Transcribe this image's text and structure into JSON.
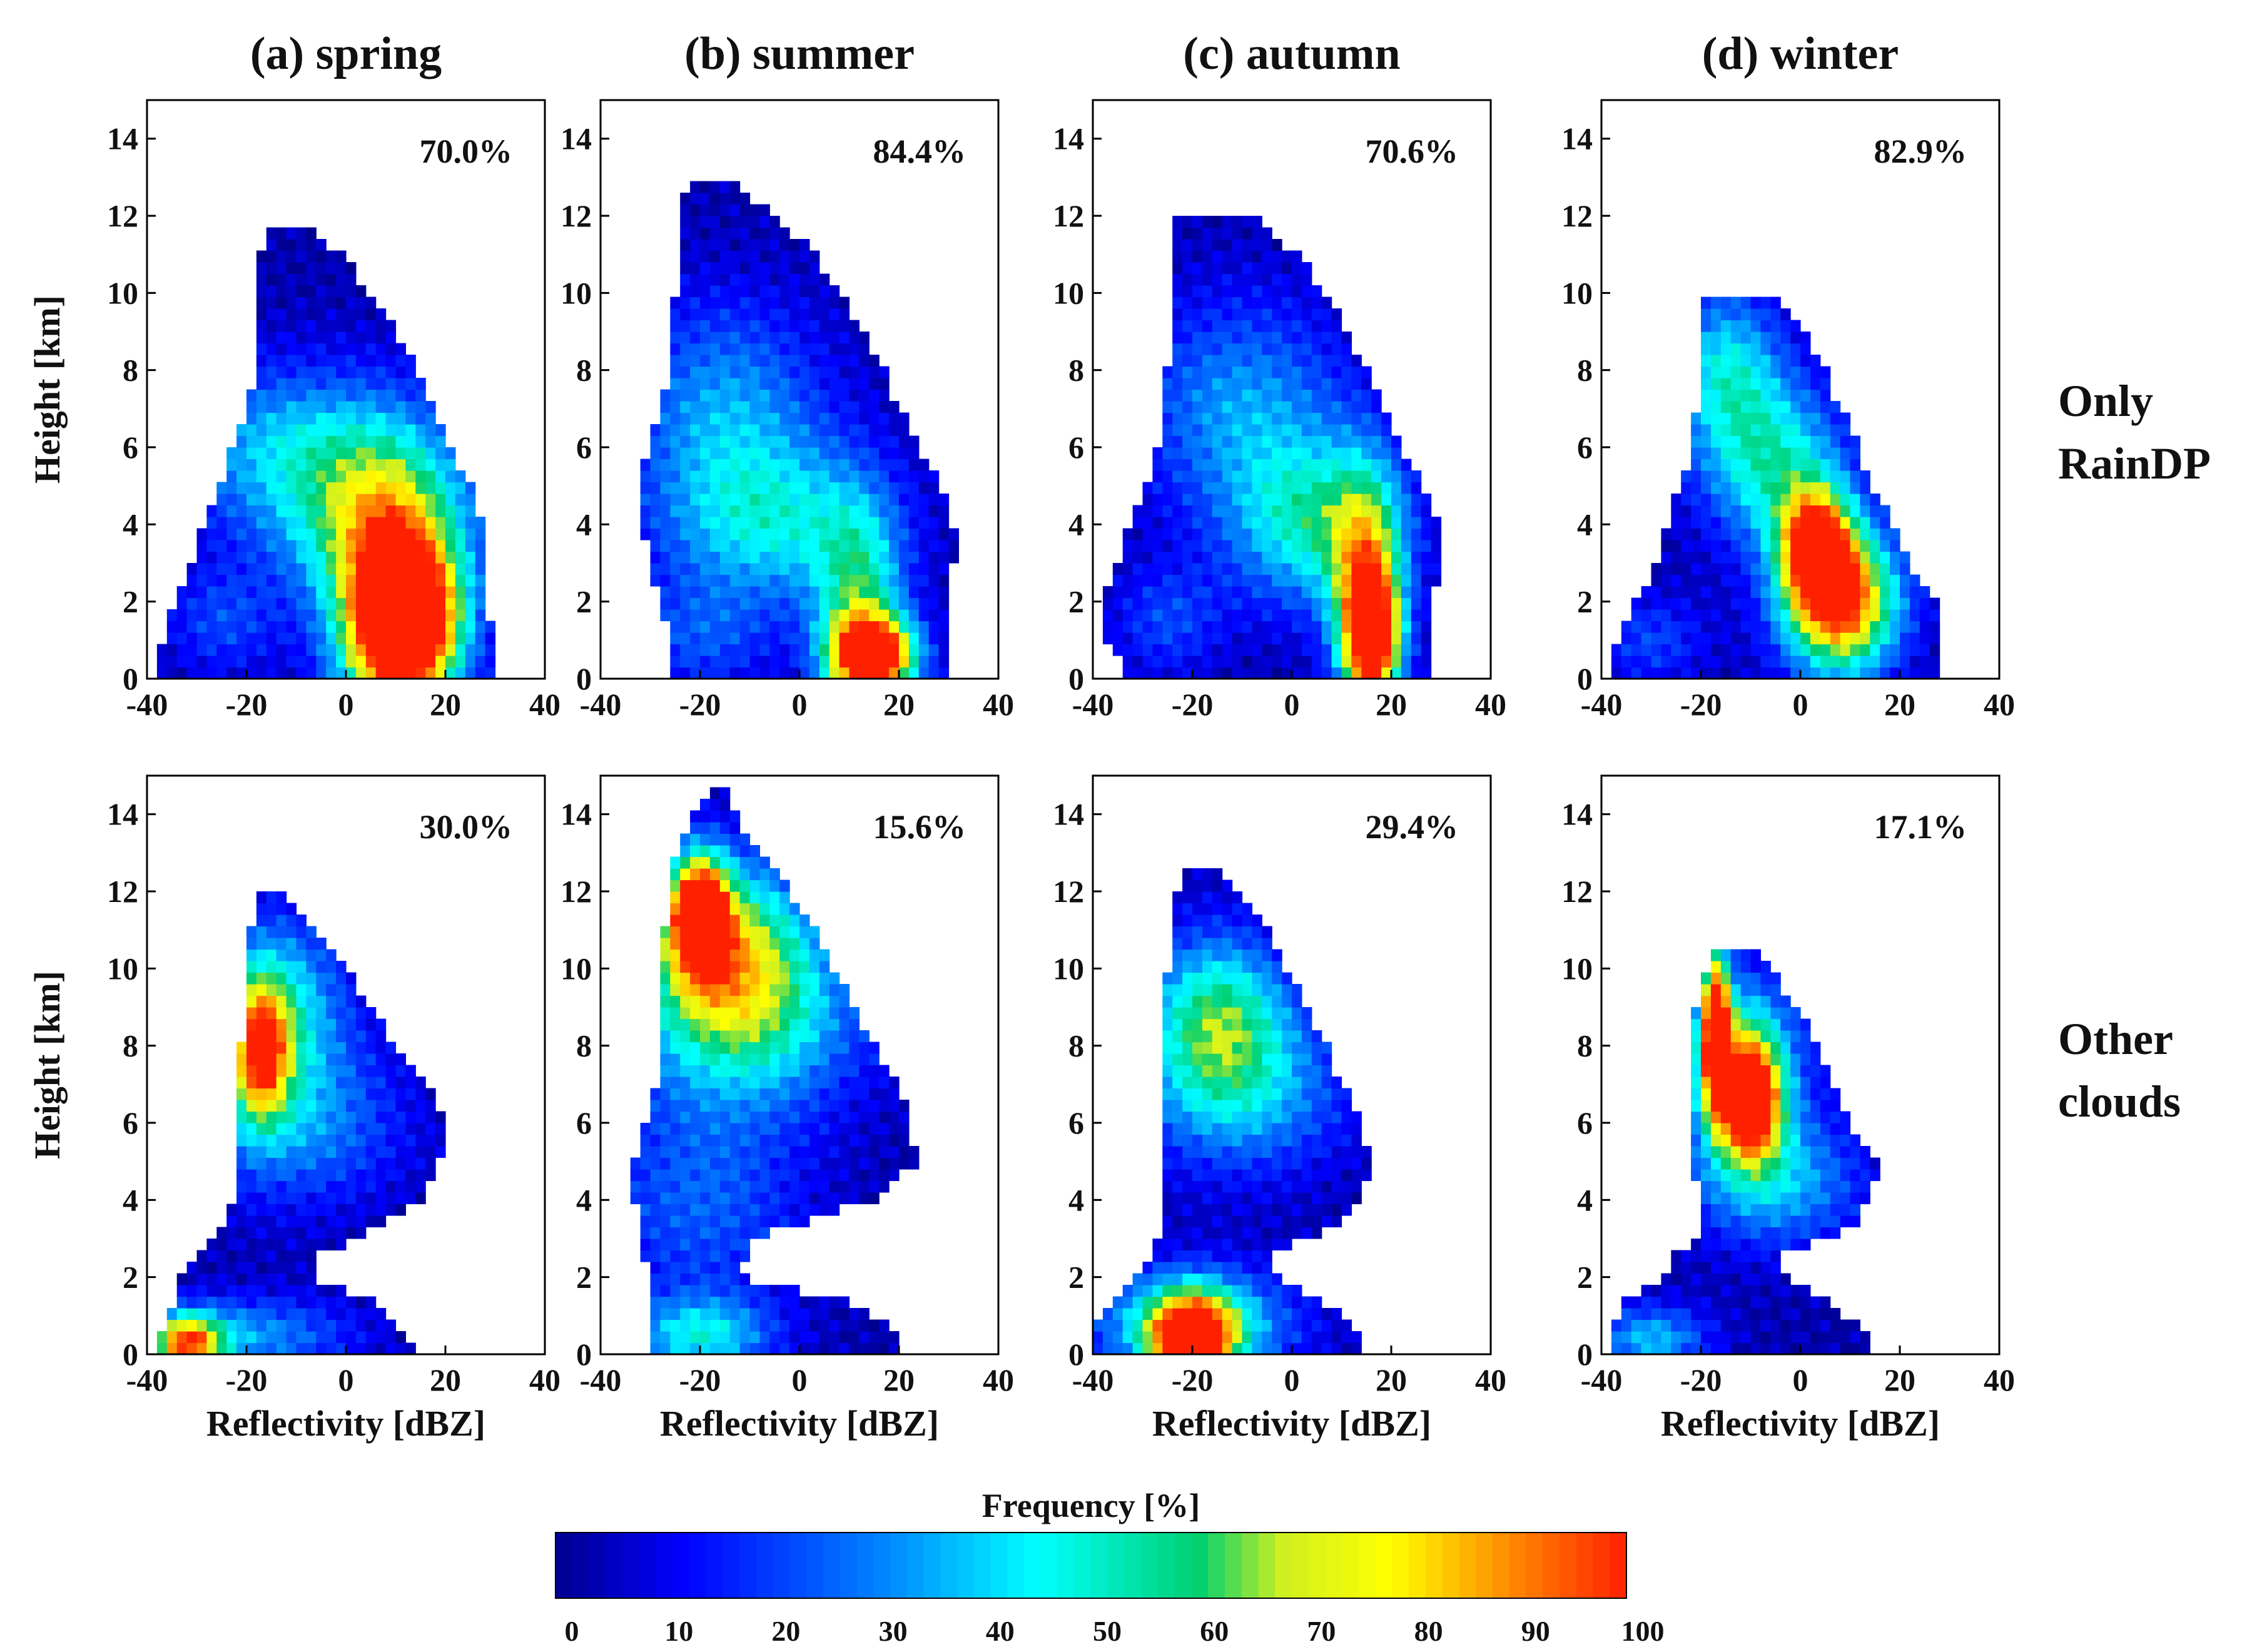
{
  "chart_data": {
    "type": "heatmap",
    "description_units": {
      "x": "dBZ",
      "y": "km",
      "z": "%"
    },
    "xlabel": "Reflectivity [dBZ]",
    "ylabel": "Height [km]",
    "xlim": [
      -40,
      40
    ],
    "ylim": [
      0,
      15
    ],
    "xticks": [
      -40,
      -20,
      0,
      20,
      40
    ],
    "yticks": [
      0,
      2,
      4,
      6,
      8,
      10,
      12,
      14
    ],
    "columns": [
      {
        "title": "(a) spring"
      },
      {
        "title": "(b) summer"
      },
      {
        "title": "(c) autumn"
      },
      {
        "title": "(d) winter"
      }
    ],
    "rows": [
      {
        "label_line1": "Only",
        "label_line2": "RainDP"
      },
      {
        "label_line1": "Other",
        "label_line2": "clouds"
      }
    ],
    "panels": [
      {
        "row": 0,
        "col": 0,
        "percent": "70.0%",
        "envelope": [
          [
            0.3,
            -38,
            30
          ],
          [
            1,
            -37,
            30
          ],
          [
            2,
            -34,
            28
          ],
          [
            3,
            -31,
            27
          ],
          [
            4,
            -29,
            28
          ],
          [
            5,
            -25,
            25
          ],
          [
            6,
            -23,
            21
          ],
          [
            7,
            -20,
            18
          ],
          [
            8,
            -18,
            14
          ],
          [
            9,
            -18,
            10
          ],
          [
            10,
            -18,
            5
          ],
          [
            11,
            -17,
            -1
          ],
          [
            11.8,
            -16,
            -8
          ]
        ],
        "blobs": [
          [
            12,
            1.5,
            7,
            1.2,
            100
          ],
          [
            10,
            1.8,
            9,
            2.5,
            70
          ],
          [
            5,
            4,
            14,
            1.5,
            38
          ],
          [
            -10,
            6,
            18,
            1.5,
            35
          ],
          [
            -25,
            1.5,
            8,
            1,
            18
          ]
        ]
      },
      {
        "row": 0,
        "col": 1,
        "percent": "84.4%",
        "envelope": [
          [
            0.1,
            -25,
            30
          ],
          [
            1,
            -26,
            30
          ],
          [
            2,
            -28,
            30
          ],
          [
            3,
            -30,
            31
          ],
          [
            4,
            -32,
            31
          ],
          [
            5,
            -33,
            28
          ],
          [
            6,
            -30,
            24
          ],
          [
            7,
            -28,
            20
          ],
          [
            8,
            -26,
            17
          ],
          [
            9,
            -25,
            13
          ],
          [
            10,
            -25,
            8
          ],
          [
            11,
            -24,
            3
          ],
          [
            12,
            -24,
            -5
          ],
          [
            13,
            -22,
            -15
          ]
        ],
        "blobs": [
          [
            15,
            0.6,
            6,
            0.7,
            100
          ],
          [
            12,
            1.5,
            6,
            2,
            50
          ],
          [
            -5,
            4,
            16,
            1.5,
            38
          ],
          [
            -15,
            7,
            14,
            2,
            30
          ],
          [
            -20,
            1,
            10,
            1,
            18
          ]
        ]
      },
      {
        "row": 0,
        "col": 2,
        "percent": "70.6%",
        "envelope": [
          [
            0.2,
            -34,
            28
          ],
          [
            1,
            -37,
            28
          ],
          [
            2,
            -38,
            28
          ],
          [
            3,
            -35,
            30
          ],
          [
            4,
            -33,
            30
          ],
          [
            5,
            -29,
            26
          ],
          [
            6,
            -27,
            22
          ],
          [
            7,
            -26,
            19
          ],
          [
            8,
            -25,
            15
          ],
          [
            9,
            -24,
            11
          ],
          [
            10,
            -24,
            7
          ],
          [
            11,
            -24,
            1
          ],
          [
            12,
            -23,
            -8
          ]
        ],
        "blobs": [
          [
            16,
            1,
            4,
            1.2,
            95
          ],
          [
            15,
            2.5,
            5,
            2,
            55
          ],
          [
            5,
            4,
            12,
            1.5,
            45
          ],
          [
            -10,
            7,
            15,
            2,
            30
          ],
          [
            -25,
            1.5,
            8,
            1,
            18
          ]
        ]
      },
      {
        "row": 0,
        "col": 3,
        "percent": "82.9%",
        "envelope": [
          [
            0.2,
            -38,
            27
          ],
          [
            1,
            -37,
            27
          ],
          [
            2,
            -33,
            28
          ],
          [
            3,
            -29,
            22
          ],
          [
            4,
            -27,
            19
          ],
          [
            5,
            -24,
            14
          ],
          [
            6,
            -22,
            12
          ],
          [
            7,
            -21,
            8
          ],
          [
            8,
            -20,
            5
          ],
          [
            9,
            -20,
            1
          ],
          [
            10,
            -19,
            -7
          ]
        ],
        "blobs": [
          [
            8,
            2,
            8,
            1.3,
            100
          ],
          [
            3,
            3.5,
            5,
            1,
            85
          ],
          [
            -5,
            5.5,
            10,
            1.5,
            45
          ],
          [
            -15,
            8,
            8,
            1.5,
            40
          ],
          [
            -30,
            1,
            8,
            0.8,
            18
          ]
        ]
      },
      {
        "row": 1,
        "col": 0,
        "percent": "30.0%",
        "envelope": [
          [
            0.1,
            -38,
            14
          ],
          [
            0.7,
            -37,
            10
          ],
          [
            1.3,
            -35,
            6
          ],
          [
            2,
            -33,
            -8
          ],
          [
            2.6,
            -30,
            -5
          ],
          [
            3.2,
            -25,
            5
          ],
          [
            4,
            -23,
            15
          ],
          [
            5,
            -22,
            19
          ],
          [
            6,
            -22,
            20
          ],
          [
            7,
            -21,
            16
          ],
          [
            8,
            -21,
            10
          ],
          [
            9,
            -20,
            5
          ],
          [
            10,
            -20,
            0
          ],
          [
            11,
            -19,
            -6
          ],
          [
            12,
            -18,
            -13
          ]
        ],
        "blobs": [
          [
            -32,
            0.3,
            5,
            0.5,
            80
          ],
          [
            -20,
            0.5,
            15,
            0.7,
            30
          ],
          [
            -17,
            7.8,
            4,
            1.2,
            70
          ],
          [
            -15,
            9,
            10,
            1.6,
            45
          ],
          [
            -10,
            6,
            15,
            1.5,
            28
          ]
        ]
      },
      {
        "row": 1,
        "col": 1,
        "percent": "15.6%",
        "envelope": [
          [
            0.1,
            -30,
            20
          ],
          [
            0.6,
            -30,
            20
          ],
          [
            1.4,
            -30,
            10
          ],
          [
            2,
            -30,
            -12
          ],
          [
            3,
            -32,
            -10
          ],
          [
            4,
            -33,
            15
          ],
          [
            5,
            -33,
            24
          ],
          [
            6,
            -31,
            22
          ],
          [
            7,
            -29,
            20
          ],
          [
            8,
            -28,
            15
          ],
          [
            9,
            -27,
            11
          ],
          [
            10,
            -27,
            7
          ],
          [
            11,
            -27,
            3
          ],
          [
            12,
            -26,
            -2
          ],
          [
            13,
            -25,
            -8
          ],
          [
            14,
            -21,
            -13
          ],
          [
            14.7,
            -18,
            -15
          ]
        ],
        "blobs": [
          [
            -20,
            11.5,
            4,
            1,
            100
          ],
          [
            -15,
            10.5,
            12,
            1.6,
            65
          ],
          [
            -10,
            8.5,
            16,
            1.6,
            38
          ],
          [
            -20,
            0.5,
            10,
            0.7,
            40
          ],
          [
            -20,
            4,
            15,
            2,
            22
          ]
        ]
      },
      {
        "row": 1,
        "col": 2,
        "percent": "29.4%",
        "envelope": [
          [
            0.1,
            -40,
            15
          ],
          [
            0.8,
            -40,
            12
          ],
          [
            1.5,
            -36,
            5
          ],
          [
            2,
            -31,
            -3
          ],
          [
            2.6,
            -28,
            -5
          ],
          [
            3.2,
            -26,
            8
          ],
          [
            4,
            -26,
            14
          ],
          [
            5,
            -26,
            16
          ],
          [
            6,
            -27,
            14
          ],
          [
            7,
            -26,
            10
          ],
          [
            8,
            -25,
            7
          ],
          [
            9,
            -25,
            3
          ],
          [
            10,
            -25,
            -1
          ],
          [
            11,
            -24,
            -5
          ],
          [
            12,
            -23,
            -10
          ],
          [
            12.7,
            -22,
            -16
          ]
        ],
        "blobs": [
          [
            -20,
            0.4,
            6,
            0.8,
            100
          ],
          [
            -20,
            0.8,
            14,
            1,
            45
          ],
          [
            -15,
            8.8,
            10,
            1.5,
            50
          ],
          [
            -10,
            6.8,
            15,
            1.5,
            32
          ]
        ]
      },
      {
        "row": 1,
        "col": 3,
        "percent": "17.1%",
        "envelope": [
          [
            0.1,
            -38,
            15
          ],
          [
            0.7,
            -38,
            12
          ],
          [
            1.4,
            -35,
            5
          ],
          [
            2,
            -28,
            -2
          ],
          [
            2.6,
            -25,
            -5
          ],
          [
            3.2,
            -20,
            10
          ],
          [
            4,
            -20,
            14
          ],
          [
            5,
            -22,
            16
          ],
          [
            6,
            -22,
            10
          ],
          [
            7,
            -23,
            6
          ],
          [
            8,
            -22,
            4
          ],
          [
            9,
            -21,
            -1
          ],
          [
            10,
            -19,
            -6
          ],
          [
            10.4,
            -17,
            -9
          ]
        ],
        "blobs": [
          [
            -17,
            8.5,
            2,
            1.5,
            100
          ],
          [
            -10,
            6.5,
            4,
            1,
            90
          ],
          [
            -12,
            7.5,
            8,
            1.5,
            60
          ],
          [
            -30,
            0.4,
            8,
            0.6,
            35
          ],
          [
            -5,
            4.5,
            12,
            1.2,
            35
          ]
        ]
      }
    ],
    "colorbar": {
      "label": "Frequency [%]",
      "range": [
        0,
        100
      ],
      "ticks": [
        0,
        10,
        20,
        30,
        40,
        50,
        60,
        70,
        80,
        90,
        100
      ],
      "colors": [
        "#00008f",
        "#0000ff",
        "#0080ff",
        "#00ffff",
        "#00d070",
        "#d0f020",
        "#ffff00",
        "#ff8000",
        "#ff2000"
      ],
      "color_stops": [
        0,
        0.12,
        0.3,
        0.45,
        0.6,
        0.68,
        0.78,
        0.9,
        1
      ]
    }
  }
}
